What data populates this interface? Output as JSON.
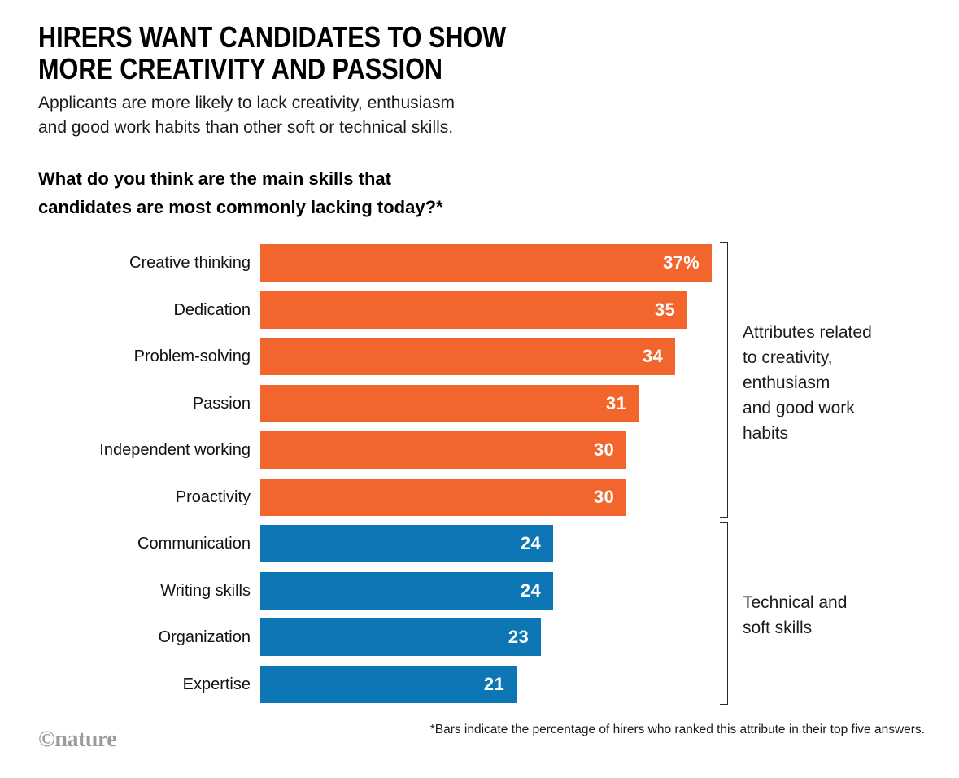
{
  "header": {
    "title": "HIRERS WANT CANDIDATES TO SHOW\nMORE CREATIVITY AND PASSION",
    "subtitle": "Applicants are more likely to lack creativity, enthusiasm\nand good work habits than other soft or technical skills.",
    "question": "What do you think are the main skills that\ncandidates are most commonly lacking today?*"
  },
  "chart_data": {
    "type": "bar",
    "orientation": "horizontal",
    "title": "What do you think are the main skills that candidates are most commonly lacking today?*",
    "categories": [
      "Creative thinking",
      "Dedication",
      "Problem-solving",
      "Passion",
      "Independent working",
      "Proactivity",
      "Communication",
      "Writing skills",
      "Organization",
      "Expertise"
    ],
    "values": [
      37,
      35,
      34,
      31,
      30,
      30,
      24,
      24,
      23,
      21
    ],
    "value_labels": [
      "37%",
      "35",
      "34",
      "31",
      "30",
      "30",
      "24",
      "24",
      "23",
      "21"
    ],
    "unit": "percent of hirers",
    "groups": [
      "creativity",
      "creativity",
      "creativity",
      "creativity",
      "creativity",
      "creativity",
      "technical",
      "technical",
      "technical",
      "technical"
    ],
    "group_colors": {
      "creativity": "#f2652c",
      "technical": "#0d76b5"
    },
    "xlim": [
      0,
      37
    ],
    "grid": false,
    "legend": "none",
    "annotations": [
      {
        "group": "creativity",
        "text": "Attributes related\nto creativity,\nenthusiasm\nand good work\nhabits"
      },
      {
        "group": "technical",
        "text": "Technical and\nsoft skills"
      }
    ],
    "footnote": "*Bars indicate the percentage of hirers who ranked this attribute in their top five answers."
  },
  "footer": {
    "footnote": "*Bars indicate the percentage of hirers who ranked this attribute in their top five answers.",
    "credit": "©nature"
  }
}
